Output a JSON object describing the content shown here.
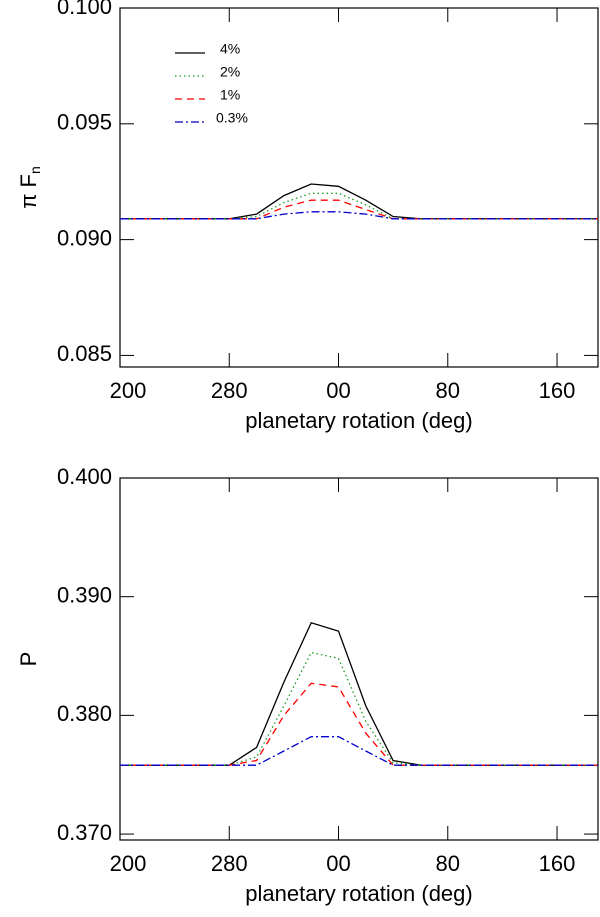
{
  "chart_data": [
    {
      "type": "line",
      "x_label": "planetary rotation (deg)",
      "y_label": "π F",
      "y_label_sub": "n",
      "x": [
        200,
        220,
        240,
        260,
        280,
        300,
        320,
        340,
        360,
        380,
        400,
        420,
        440,
        460,
        480,
        500,
        520,
        540,
        550
      ],
      "xlim": [
        200,
        550
      ],
      "xticks": [
        200,
        280,
        {
          "value": 360,
          "label": "00"
        },
        {
          "value": 440,
          "label": "80"
        },
        {
          "value": 520,
          "label": "160"
        }
      ],
      "ylim": [
        0.0845,
        0.1
      ],
      "yticks": [
        0.085,
        {
          "value": 0.09,
          "label": "0.090"
        },
        0.095,
        {
          "value": 0.1,
          "label": "0.100"
        }
      ],
      "legend": "upper left",
      "series": [
        {
          "name": "4%",
          "color": "#000000",
          "dash": "solid",
          "values": [
            0.0909,
            0.0909,
            0.0909,
            0.0909,
            0.0909,
            0.0911,
            0.0919,
            0.0924,
            0.0923,
            0.0917,
            0.091,
            0.0909,
            0.0909,
            0.0909,
            0.0909,
            0.0909,
            0.0909,
            0.0909,
            0.0909
          ]
        },
        {
          "name": "2%",
          "color": "#1f9a1f",
          "dash": "dotted",
          "values": [
            0.0909,
            0.0909,
            0.0909,
            0.0909,
            0.0909,
            0.091,
            0.0916,
            0.092,
            0.092,
            0.0915,
            0.0909,
            0.0909,
            0.0909,
            0.0909,
            0.0909,
            0.0909,
            0.0909,
            0.0909,
            0.0909
          ]
        },
        {
          "name": "1%",
          "color": "#ff0000",
          "dash": "dashed",
          "values": [
            0.0909,
            0.0909,
            0.0909,
            0.0909,
            0.0909,
            0.0909,
            0.0914,
            0.0917,
            0.0917,
            0.0913,
            0.0909,
            0.0909,
            0.0909,
            0.0909,
            0.0909,
            0.0909,
            0.0909,
            0.0909,
            0.0909
          ]
        },
        {
          "name": "0.3%",
          "color": "#0000cc",
          "dash": "dashdot",
          "values": [
            0.0909,
            0.0909,
            0.0909,
            0.0909,
            0.0909,
            0.0909,
            0.0911,
            0.0912,
            0.0912,
            0.0911,
            0.0909,
            0.0909,
            0.0909,
            0.0909,
            0.0909,
            0.0909,
            0.0909,
            0.0909,
            0.0909
          ]
        }
      ]
    },
    {
      "type": "line",
      "x_label": "planetary rotation (deg)",
      "y_label": "P",
      "x": [
        200,
        220,
        240,
        260,
        280,
        300,
        320,
        340,
        360,
        380,
        400,
        420,
        440,
        460,
        480,
        500,
        520,
        540,
        550
      ],
      "xlim": [
        200,
        550
      ],
      "xticks": [
        200,
        280,
        {
          "value": 360,
          "label": "00"
        },
        {
          "value": 440,
          "label": "80"
        },
        {
          "value": 520,
          "label": "160"
        }
      ],
      "ylim": [
        0.3695,
        0.4
      ],
      "yticks": [
        {
          "value": 0.37,
          "label": "0.370"
        },
        {
          "value": 0.38,
          "label": "0.380"
        },
        {
          "value": 0.39,
          "label": "0.390"
        },
        {
          "value": 0.4,
          "label": "0.400"
        }
      ],
      "series": [
        {
          "name": "4%",
          "color": "#000000",
          "dash": "solid",
          "values": [
            0.3758,
            0.3758,
            0.3758,
            0.3758,
            0.3758,
            0.3773,
            0.3828,
            0.3878,
            0.3871,
            0.3808,
            0.3762,
            0.3758,
            0.3758,
            0.3758,
            0.3758,
            0.3758,
            0.3758,
            0.3758,
            0.3758
          ]
        },
        {
          "name": "2%",
          "color": "#1f9a1f",
          "dash": "dotted",
          "values": [
            0.3758,
            0.3758,
            0.3758,
            0.3758,
            0.3758,
            0.3765,
            0.3808,
            0.3853,
            0.3848,
            0.3795,
            0.376,
            0.3758,
            0.3758,
            0.3758,
            0.3758,
            0.3758,
            0.3758,
            0.3758,
            0.3758
          ]
        },
        {
          "name": "1%",
          "color": "#ff0000",
          "dash": "dashed",
          "values": [
            0.3758,
            0.3758,
            0.3758,
            0.3758,
            0.3758,
            0.3762,
            0.38,
            0.3827,
            0.3824,
            0.3785,
            0.3758,
            0.3758,
            0.3758,
            0.3758,
            0.3758,
            0.3758,
            0.3758,
            0.3758,
            0.3758
          ]
        },
        {
          "name": "0.3%",
          "color": "#0000cc",
          "dash": "dashdot",
          "values": [
            0.3758,
            0.3758,
            0.3758,
            0.3758,
            0.3758,
            0.3758,
            0.377,
            0.3782,
            0.3782,
            0.377,
            0.3758,
            0.3758,
            0.3758,
            0.3758,
            0.3758,
            0.3758,
            0.3758,
            0.3758,
            0.3758
          ]
        }
      ]
    }
  ]
}
